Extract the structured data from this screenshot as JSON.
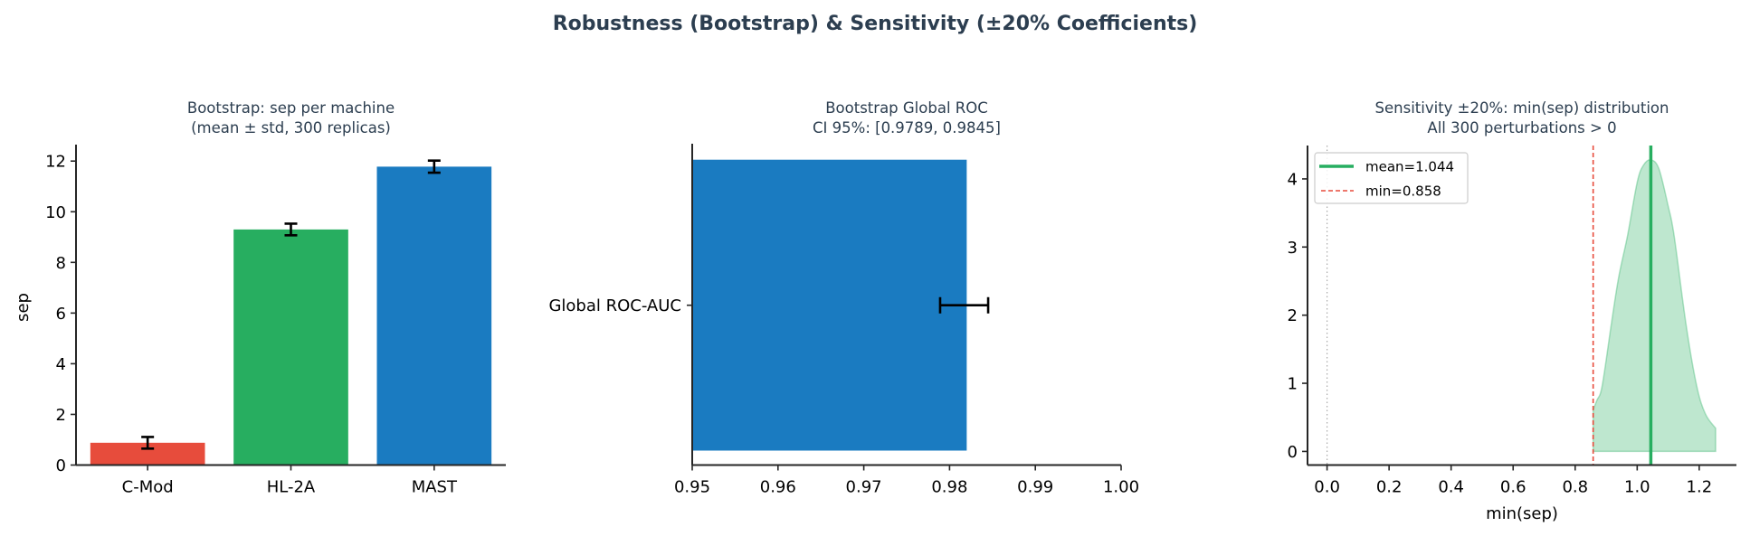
{
  "figure": {
    "suptitle": "Robustness (Bootstrap) & Sensitivity (±20% Coefficients)",
    "title_color": "#2c3e50"
  },
  "chart_data": [
    {
      "type": "bar",
      "title": "Bootstrap: sep per machine\n(mean ± std, 300 replicas)",
      "title_lines": [
        "Bootstrap: sep per machine",
        "(mean ± std, 300 replicas)"
      ],
      "xlabel": "",
      "ylabel": "sep",
      "categories": [
        "C-Mod",
        "HL-2A",
        "MAST"
      ],
      "values": [
        0.88,
        9.3,
        11.78
      ],
      "errors": [
        0.23,
        0.23,
        0.24
      ],
      "colors": [
        "#e74c3c",
        "#27ae60",
        "#1a7bc1"
      ],
      "ylim": [
        0,
        12.65
      ],
      "yticks": [
        0,
        2,
        4,
        6,
        8,
        10,
        12
      ],
      "grid": false
    },
    {
      "type": "bar",
      "orientation": "horizontal",
      "title": "Bootstrap Global ROC\nCI 95%: [0.9789, 0.9845]",
      "title_lines": [
        "Bootstrap Global ROC",
        "CI 95%: [0.9789, 0.9845]"
      ],
      "categories": [
        "Global ROC-AUC"
      ],
      "values": [
        0.982
      ],
      "ci_low": [
        0.9789
      ],
      "ci_high": [
        0.9845
      ],
      "colors": [
        "#1a7bc1"
      ],
      "xlim": [
        0.95,
        1.0
      ],
      "xticks": [
        0.95,
        0.96,
        0.97,
        0.98,
        0.99,
        1.0
      ],
      "xtick_labels": [
        "0.95",
        "0.96",
        "0.97",
        "0.98",
        "0.99",
        "1.00"
      ],
      "xlabel": "",
      "ylabel": "",
      "grid": false
    },
    {
      "type": "area",
      "title": "Sensitivity ±20%: min(sep) distribution\nAll 300 perturbations > 0",
      "title_lines": [
        "Sensitivity ±20%: min(sep) distribution",
        "All 300 perturbations > 0"
      ],
      "xlabel": "min(sep)",
      "ylabel": "",
      "x": [
        0.858,
        0.87,
        0.887,
        0.916,
        0.94,
        0.969,
        1.0,
        1.02,
        1.044,
        1.07,
        1.1,
        1.119,
        1.158,
        1.192,
        1.22,
        1.253
      ],
      "y": [
        0.61,
        0.75,
        0.96,
        1.85,
        2.55,
        3.17,
        3.95,
        4.2,
        4.28,
        4.15,
        3.6,
        3.17,
        1.85,
        0.96,
        0.55,
        0.34
      ],
      "fill_color": "#27ae60",
      "fill_alpha": 0.3,
      "mean": 1.044,
      "min": 0.858,
      "reference_line_x": 0.0,
      "xlim": [
        -0.063,
        1.32
      ],
      "ylim": [
        -0.2,
        4.49
      ],
      "xticks": [
        0.0,
        0.2,
        0.4,
        0.6,
        0.8,
        1.0,
        1.2
      ],
      "xtick_labels": [
        "0.0",
        "0.2",
        "0.4",
        "0.6",
        "0.8",
        "1.0",
        "1.2"
      ],
      "yticks": [
        0,
        1,
        2,
        3,
        4
      ],
      "legend": [
        {
          "label": "mean=1.044",
          "style": "solid",
          "color": "#27ae60"
        },
        {
          "label": "min=0.858",
          "style": "dashed",
          "color": "#e74c3c"
        }
      ],
      "legend_position": "upper left",
      "grid": false
    }
  ]
}
